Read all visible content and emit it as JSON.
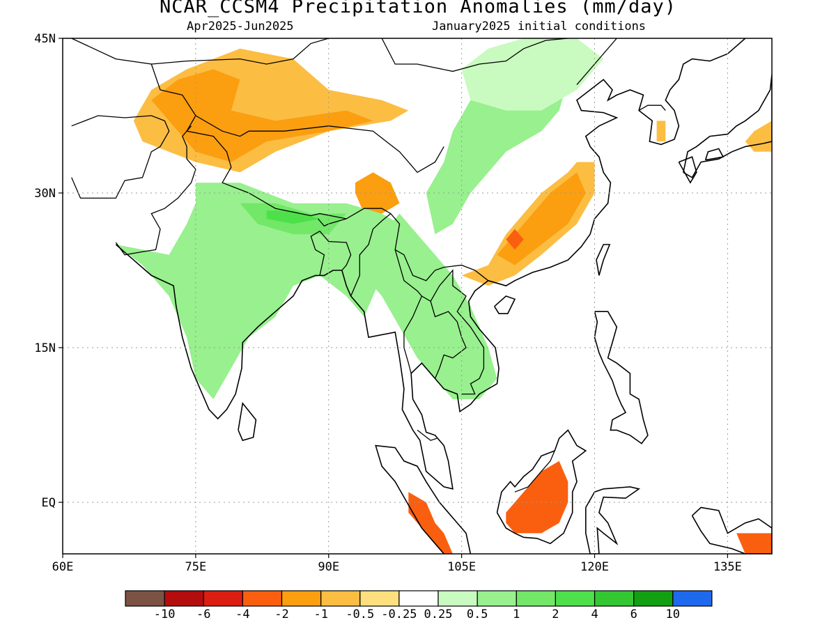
{
  "title": "NCAR_CCSM4 Precipitation Anomalies (mm/day)",
  "subtitle_left": "Apr2025-Jun2025",
  "subtitle_right": "January2025 initial conditions",
  "map": {
    "lon_range": [
      60,
      140
    ],
    "lat_range": [
      -5,
      45
    ],
    "lon_ticks": [
      {
        "value": 60,
        "label": "60E"
      },
      {
        "value": 75,
        "label": "75E"
      },
      {
        "value": 90,
        "label": "90E"
      },
      {
        "value": 105,
        "label": "105E"
      },
      {
        "value": 120,
        "label": "120E"
      },
      {
        "value": 135,
        "label": "135E"
      }
    ],
    "lat_ticks": [
      {
        "value": 45,
        "label": "45N"
      },
      {
        "value": 30,
        "label": "30N"
      },
      {
        "value": 15,
        "label": "15N"
      },
      {
        "value": 0,
        "label": "EQ"
      }
    ],
    "gridlines": "dotted"
  },
  "colorbar": {
    "colors": [
      "#7b5243",
      "#b40d0d",
      "#dc1d12",
      "#fa5f10",
      "#fb9e10",
      "#fcbd43",
      "#fde07d",
      "#ffffff",
      "#c9fbc0",
      "#98f08e",
      "#72e768",
      "#4ee04b",
      "#33c832",
      "#12a012",
      "#1f69ee"
    ],
    "labels": [
      "-10",
      "-6",
      "-4",
      "-2",
      "-1",
      "-0.5",
      "-0.25",
      "0.25",
      "0.5",
      "1",
      "2",
      "4",
      "6",
      "10"
    ]
  },
  "anomaly_regions": [
    {
      "level": "-0.5",
      "color": "#fcbd43",
      "points": [
        [
          68,
          37
        ],
        [
          70,
          40
        ],
        [
          74,
          42
        ],
        [
          80,
          44
        ],
        [
          86,
          43
        ],
        [
          90,
          40
        ],
        [
          96,
          39
        ],
        [
          99,
          38
        ],
        [
          97,
          37
        ],
        [
          90,
          36
        ],
        [
          84,
          34
        ],
        [
          80,
          32
        ],
        [
          75,
          33
        ],
        [
          69,
          35
        ]
      ]
    },
    {
      "level": "-1",
      "color": "#fb9e10",
      "points": [
        [
          70,
          39
        ],
        [
          73,
          41
        ],
        [
          77,
          42
        ],
        [
          80,
          41
        ],
        [
          79,
          38
        ],
        [
          84,
          37
        ],
        [
          92,
          38
        ],
        [
          95,
          37
        ],
        [
          90,
          36
        ],
        [
          83,
          35
        ],
        [
          79,
          33
        ],
        [
          75,
          34
        ],
        [
          72,
          37
        ]
      ]
    },
    {
      "level": "-1",
      "color": "#fb9e10",
      "points": [
        [
          93,
          31
        ],
        [
          95,
          32
        ],
        [
          97,
          31
        ],
        [
          98,
          29
        ],
        [
          96,
          28
        ],
        [
          94,
          28
        ],
        [
          93,
          30
        ]
      ]
    },
    {
      "level": "-0.5",
      "color": "#fcbd43",
      "points": [
        [
          108,
          23
        ],
        [
          110,
          26
        ],
        [
          114,
          30
        ],
        [
          117,
          32
        ],
        [
          118,
          33
        ],
        [
          120,
          33
        ],
        [
          120,
          30
        ],
        [
          118,
          27
        ],
        [
          114,
          24
        ],
        [
          111,
          22
        ],
        [
          108,
          21
        ],
        [
          105,
          22
        ]
      ]
    },
    {
      "level": "-1",
      "color": "#fb9e10",
      "points": [
        [
          109,
          24
        ],
        [
          112,
          27
        ],
        [
          115,
          30
        ],
        [
          118,
          32
        ],
        [
          119,
          30
        ],
        [
          117,
          27
        ],
        [
          114,
          25
        ],
        [
          111,
          23
        ]
      ]
    },
    {
      "level": "-2",
      "color": "#fa5f10",
      "points": [
        [
          110,
          25.5
        ],
        [
          111,
          26.5
        ],
        [
          112,
          25.5
        ],
        [
          111,
          24.5
        ]
      ]
    },
    {
      "level": "-2",
      "color": "#fa5f10",
      "points": [
        [
          110,
          -1
        ],
        [
          112,
          1
        ],
        [
          114,
          3
        ],
        [
          116,
          4
        ],
        [
          117,
          2
        ],
        [
          117,
          0
        ],
        [
          116,
          -2
        ],
        [
          114,
          -3
        ],
        [
          111,
          -3
        ],
        [
          110,
          -2
        ]
      ]
    },
    {
      "level": "-2",
      "color": "#fa5f10",
      "points": [
        [
          99,
          1
        ],
        [
          101,
          0
        ],
        [
          102,
          -2
        ],
        [
          103,
          -3
        ],
        [
          104,
          -5
        ],
        [
          103,
          -5
        ],
        [
          101,
          -3
        ],
        [
          99,
          -1
        ]
      ]
    },
    {
      "level": "-2",
      "color": "#fa5f10",
      "points": [
        [
          136,
          -3
        ],
        [
          140,
          -3
        ],
        [
          140,
          -5
        ],
        [
          137,
          -5
        ]
      ]
    },
    {
      "level": "0.5",
      "color": "#98f08e",
      "points": [
        [
          75,
          31
        ],
        [
          80,
          31
        ],
        [
          86,
          29
        ],
        [
          92,
          29
        ],
        [
          96,
          28
        ],
        [
          98,
          27
        ],
        [
          97,
          24
        ],
        [
          95,
          20
        ],
        [
          94,
          18
        ],
        [
          92,
          20
        ],
        [
          89,
          22
        ],
        [
          86,
          21
        ],
        [
          84,
          18
        ],
        [
          81,
          16
        ],
        [
          79,
          13
        ],
        [
          77,
          10
        ],
        [
          75,
          12
        ],
        [
          74,
          16
        ],
        [
          72,
          20
        ],
        [
          69,
          23
        ],
        [
          66,
          25
        ],
        [
          72,
          24
        ],
        [
          74,
          27
        ],
        [
          75,
          29
        ]
      ]
    },
    {
      "level": "1",
      "color": "#72e768",
      "points": [
        [
          80,
          29
        ],
        [
          84,
          29
        ],
        [
          88,
          28
        ],
        [
          92,
          28
        ],
        [
          90,
          26
        ],
        [
          86,
          26
        ],
        [
          82,
          27
        ]
      ]
    },
    {
      "level": "2",
      "color": "#4ee04b",
      "points": [
        [
          83,
          28.3
        ],
        [
          86,
          28.3
        ],
        [
          89,
          27.5
        ],
        [
          86,
          27
        ],
        [
          83,
          27.5
        ]
      ]
    },
    {
      "level": "0.5",
      "color": "#98f08e",
      "points": [
        [
          98,
          28
        ],
        [
          100,
          26
        ],
        [
          102,
          24
        ],
        [
          104,
          22
        ],
        [
          106,
          19
        ],
        [
          108,
          15
        ],
        [
          109,
          12
        ],
        [
          107,
          10
        ],
        [
          104,
          10
        ],
        [
          102,
          12
        ],
        [
          100,
          14
        ],
        [
          98,
          17
        ],
        [
          96,
          20
        ],
        [
          94,
          22
        ],
        [
          95,
          25
        ]
      ]
    },
    {
      "level": "0.5",
      "color": "#98f08e",
      "points": [
        [
          101,
          30
        ],
        [
          103,
          33
        ],
        [
          104,
          36
        ],
        [
          106,
          39
        ],
        [
          108,
          42
        ],
        [
          110,
          44
        ],
        [
          114,
          45
        ],
        [
          117,
          44
        ],
        [
          117,
          41
        ],
        [
          116,
          38
        ],
        [
          114,
          36
        ],
        [
          110,
          34
        ],
        [
          106,
          30
        ],
        [
          104,
          27
        ],
        [
          102,
          26
        ]
      ]
    },
    {
      "level": "0.25",
      "color": "#c9fbc0",
      "points": [
        [
          105,
          42
        ],
        [
          108,
          44
        ],
        [
          112,
          45
        ],
        [
          118,
          45
        ],
        [
          121,
          43
        ],
        [
          118,
          40
        ],
        [
          114,
          38
        ],
        [
          110,
          38
        ],
        [
          106,
          39
        ]
      ]
    },
    {
      "level": "-0.5",
      "color": "#fcbd43",
      "points": [
        [
          127,
          35
        ],
        [
          127,
          37
        ],
        [
          128,
          37
        ],
        [
          128,
          35
        ]
      ]
    },
    {
      "level": "-0.5",
      "color": "#fcbd43",
      "points": [
        [
          137,
          35
        ],
        [
          138,
          36
        ],
        [
          140,
          37
        ],
        [
          140,
          34
        ],
        [
          138,
          34
        ]
      ]
    }
  ]
}
